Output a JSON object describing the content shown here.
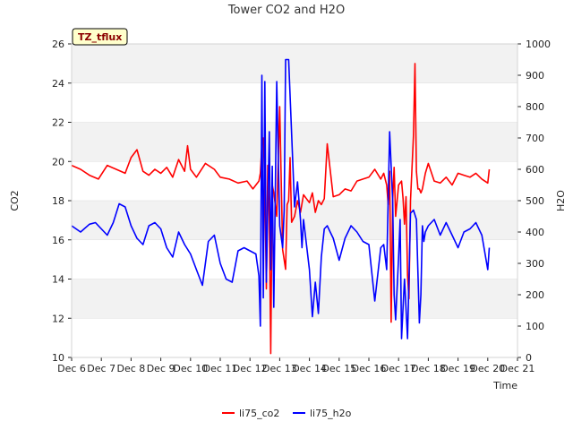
{
  "chart_data": {
    "type": "line",
    "title": "Tower CO2 and H2O",
    "badge": "TZ_tflux",
    "xlabel": "Time",
    "ylabel_left": "CO2",
    "ylabel_right": "H2O",
    "x_ticks": [
      "Dec 6",
      "Dec 7",
      "Dec 8",
      "Dec 9",
      "Dec 10",
      "Dec 11",
      "Dec 12",
      "Dec 13",
      "Dec 14",
      "Dec 15",
      "Dec 16",
      "Dec 17",
      "Dec 18",
      "Dec 19",
      "Dec 20",
      "Dec 21"
    ],
    "xlim": [
      6,
      21
    ],
    "ylim_left": [
      10,
      26
    ],
    "yticks_left": [
      "10",
      "12",
      "14",
      "16",
      "18",
      "20",
      "22",
      "24",
      "26"
    ],
    "ylim_right": [
      0,
      1000
    ],
    "yticks_right": [
      "0",
      "100",
      "200",
      "300",
      "400",
      "500",
      "600",
      "700",
      "800",
      "900",
      "1000"
    ],
    "colors": {
      "co2": "#ff0000",
      "h2o": "#0000ff",
      "band": "#f2f2f2",
      "badge_bg": "#ffffcc"
    },
    "series": [
      {
        "name": "li75_co2",
        "axis": "left",
        "x": [
          6.0,
          6.3,
          6.6,
          6.9,
          7.2,
          7.5,
          7.8,
          8.0,
          8.2,
          8.4,
          8.6,
          8.8,
          9.0,
          9.2,
          9.4,
          9.6,
          9.8,
          9.9,
          10.0,
          10.2,
          10.5,
          10.8,
          11.0,
          11.3,
          11.6,
          11.9,
          12.1,
          12.3,
          12.35,
          12.4,
          12.45,
          12.5,
          12.55,
          12.6,
          12.65,
          12.7,
          12.75,
          12.8,
          12.9,
          13.0,
          13.1,
          13.2,
          13.25,
          13.3,
          13.35,
          13.4,
          13.5,
          13.6,
          13.7,
          13.8,
          13.9,
          14.0,
          14.1,
          14.2,
          14.3,
          14.4,
          14.5,
          14.6,
          14.8,
          15.0,
          15.2,
          15.4,
          15.6,
          15.8,
          16.0,
          16.2,
          16.4,
          16.5,
          16.6,
          16.65,
          16.7,
          16.75,
          16.8,
          16.85,
          16.9,
          17.0,
          17.1,
          17.15,
          17.2,
          17.25,
          17.3,
          17.35,
          17.4,
          17.5,
          17.55,
          17.6,
          17.65,
          17.7,
          17.75,
          17.8,
          17.9,
          18.0,
          18.2,
          18.4,
          18.6,
          18.8,
          19.0,
          19.2,
          19.4,
          19.6,
          19.8,
          20.0,
          20.05
        ],
        "values": [
          19.8,
          19.6,
          19.3,
          19.1,
          19.8,
          19.6,
          19.4,
          20.2,
          20.6,
          19.5,
          19.3,
          19.6,
          19.4,
          19.7,
          19.2,
          20.1,
          19.5,
          20.8,
          19.6,
          19.2,
          19.9,
          19.6,
          19.2,
          19.1,
          18.9,
          19.0,
          18.6,
          19.0,
          19.4,
          20.8,
          21.2,
          18.9,
          13.5,
          19.8,
          17.2,
          10.2,
          18.8,
          18.4,
          17.2,
          22.8,
          15.5,
          14.5,
          17.8,
          18.0,
          20.2,
          16.9,
          17.2,
          18.0,
          17.4,
          18.3,
          18.1,
          17.9,
          18.4,
          17.4,
          18.0,
          17.8,
          18.1,
          20.9,
          18.2,
          18.3,
          18.6,
          18.5,
          19.0,
          19.1,
          19.2,
          19.6,
          19.1,
          19.4,
          18.8,
          17.8,
          19.5,
          11.8,
          18.0,
          19.7,
          17.2,
          18.8,
          19.0,
          18.1,
          16.8,
          18.2,
          14.2,
          13.0,
          18.0,
          21.3,
          25.0,
          19.5,
          18.6,
          18.6,
          18.4,
          18.6,
          19.4,
          19.9,
          19.0,
          18.9,
          19.2,
          18.8,
          19.4,
          19.3,
          19.2,
          19.4,
          19.1,
          18.9,
          19.6
        ]
      },
      {
        "name": "li75_h2o",
        "axis": "right",
        "x": [
          6.0,
          6.3,
          6.6,
          6.8,
          7.0,
          7.2,
          7.4,
          7.6,
          7.8,
          8.0,
          8.2,
          8.4,
          8.6,
          8.8,
          9.0,
          9.2,
          9.4,
          9.6,
          9.8,
          10.0,
          10.2,
          10.4,
          10.6,
          10.8,
          11.0,
          11.2,
          11.4,
          11.6,
          11.8,
          12.0,
          12.2,
          12.3,
          12.35,
          12.4,
          12.45,
          12.5,
          12.55,
          12.6,
          12.65,
          12.7,
          12.75,
          12.8,
          12.9,
          13.0,
          13.1,
          13.15,
          13.2,
          13.3,
          13.5,
          13.6,
          13.7,
          13.75,
          13.8,
          13.9,
          14.0,
          14.1,
          14.2,
          14.3,
          14.4,
          14.5,
          14.6,
          14.7,
          14.8,
          15.0,
          15.2,
          15.4,
          15.6,
          15.8,
          16.0,
          16.2,
          16.4,
          16.5,
          16.6,
          16.7,
          16.8,
          16.85,
          16.9,
          17.0,
          17.05,
          17.1,
          17.15,
          17.2,
          17.3,
          17.4,
          17.5,
          17.6,
          17.7,
          17.75,
          17.8,
          17.85,
          17.9,
          18.0,
          18.2,
          18.4,
          18.6,
          18.8,
          19.0,
          19.2,
          19.4,
          19.6,
          19.8,
          20.0,
          20.05
        ],
        "values": [
          420,
          400,
          425,
          430,
          410,
          390,
          430,
          490,
          480,
          420,
          380,
          360,
          420,
          430,
          410,
          350,
          320,
          400,
          360,
          330,
          280,
          230,
          370,
          390,
          300,
          250,
          240,
          340,
          350,
          340,
          330,
          260,
          100,
          900,
          190,
          880,
          240,
          480,
          720,
          280,
          610,
          160,
          880,
          420,
          350,
          470,
          950,
          950,
          480,
          560,
          440,
          350,
          440,
          360,
          280,
          130,
          240,
          140,
          320,
          410,
          420,
          400,
          380,
          310,
          380,
          420,
          400,
          370,
          360,
          180,
          350,
          360,
          280,
          720,
          500,
          200,
          120,
          320,
          440,
          60,
          160,
          250,
          60,
          460,
          470,
          440,
          110,
          200,
          420,
          370,
          400,
          420,
          440,
          390,
          430,
          390,
          350,
          400,
          410,
          430,
          390,
          280,
          350
        ]
      }
    ],
    "legend": [
      {
        "label": "li75_co2",
        "color": "#ff0000"
      },
      {
        "label": "li75_h2o",
        "color": "#0000ff"
      }
    ]
  }
}
